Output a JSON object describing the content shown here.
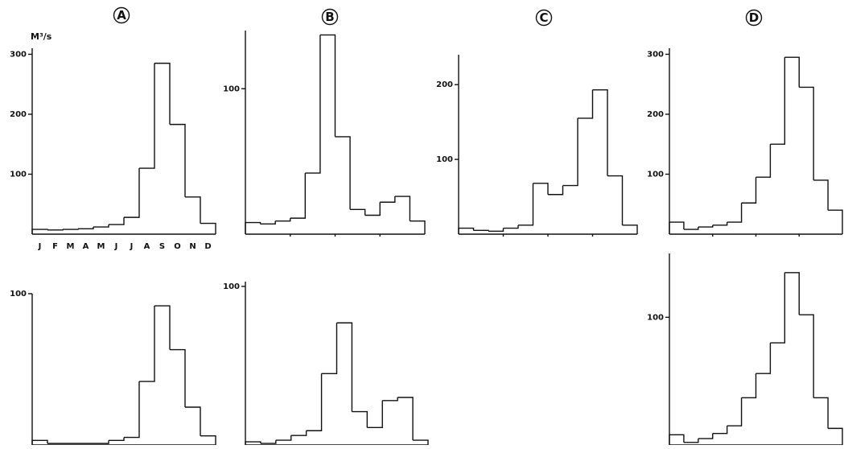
{
  "unit_label": "M³/s",
  "month_labels": [
    "J",
    "F",
    "M",
    "A",
    "M",
    "J",
    "J",
    "A",
    "S",
    "O",
    "N",
    "D"
  ],
  "chart_data": [
    {
      "type": "step",
      "id": "A-top",
      "letter": "A",
      "x": [
        "J",
        "F",
        "M",
        "A",
        "M",
        "J",
        "J",
        "A",
        "S",
        "O",
        "N",
        "D"
      ],
      "values": [
        8,
        7,
        8,
        9,
        12,
        16,
        28,
        110,
        285,
        183,
        62,
        18
      ],
      "ylim": [
        0,
        310
      ],
      "yticks": [
        100,
        200,
        300
      ]
    },
    {
      "type": "step",
      "id": "B-top",
      "letter": "B",
      "x": [
        "J",
        "F",
        "M",
        "A",
        "M",
        "J",
        "J",
        "A",
        "S",
        "O",
        "N",
        "D"
      ],
      "values": [
        8,
        7,
        9,
        11,
        42,
        137,
        67,
        17,
        13,
        22,
        26,
        9
      ],
      "ylim": [
        0,
        140
      ],
      "yticks": [
        100
      ]
    },
    {
      "type": "step",
      "id": "C-top",
      "letter": "C",
      "x": [
        "J",
        "F",
        "M",
        "A",
        "M",
        "J",
        "J",
        "A",
        "S",
        "O",
        "N",
        "D"
      ],
      "values": [
        8,
        5,
        4,
        8,
        12,
        68,
        53,
        65,
        155,
        193,
        78,
        12
      ],
      "ylim": [
        0,
        240
      ],
      "yticks": [
        100,
        200
      ]
    },
    {
      "type": "step",
      "id": "D-top",
      "letter": "D",
      "x": [
        "J",
        "F",
        "M",
        "A",
        "M",
        "J",
        "J",
        "A",
        "S",
        "O",
        "N",
        "D"
      ],
      "values": [
        20,
        8,
        12,
        15,
        20,
        52,
        95,
        150,
        295,
        245,
        90,
        40
      ],
      "ylim": [
        0,
        310
      ],
      "yticks": [
        100,
        200,
        300
      ]
    },
    {
      "type": "step",
      "id": "A-bottom",
      "x": [
        "J",
        "F",
        "M",
        "A",
        "M",
        "J",
        "J",
        "A",
        "S",
        "O",
        "N",
        "D"
      ],
      "values": [
        3,
        1,
        1,
        1,
        1,
        3,
        5,
        42,
        92,
        63,
        25,
        6
      ],
      "ylim": [
        0,
        100
      ],
      "yticks": [
        100
      ]
    },
    {
      "type": "step",
      "id": "B-bottom",
      "x": [
        "J",
        "F",
        "M",
        "A",
        "M",
        "J",
        "J",
        "A",
        "S",
        "O",
        "N",
        "D"
      ],
      "values": [
        2,
        1,
        3,
        6,
        9,
        45,
        77,
        21,
        11,
        28,
        30,
        3
      ],
      "ylim": [
        0,
        103
      ],
      "yticks": [
        100
      ]
    },
    {
      "type": "step",
      "id": "D-bottom",
      "x": [
        "J",
        "F",
        "M",
        "A",
        "M",
        "J",
        "J",
        "A",
        "S",
        "O",
        "N",
        "D"
      ],
      "values": [
        8,
        2,
        5,
        9,
        15,
        37,
        56,
        80,
        135,
        102,
        37,
        13
      ],
      "ylim": [
        0,
        150
      ],
      "yticks": [
        100
      ]
    }
  ]
}
